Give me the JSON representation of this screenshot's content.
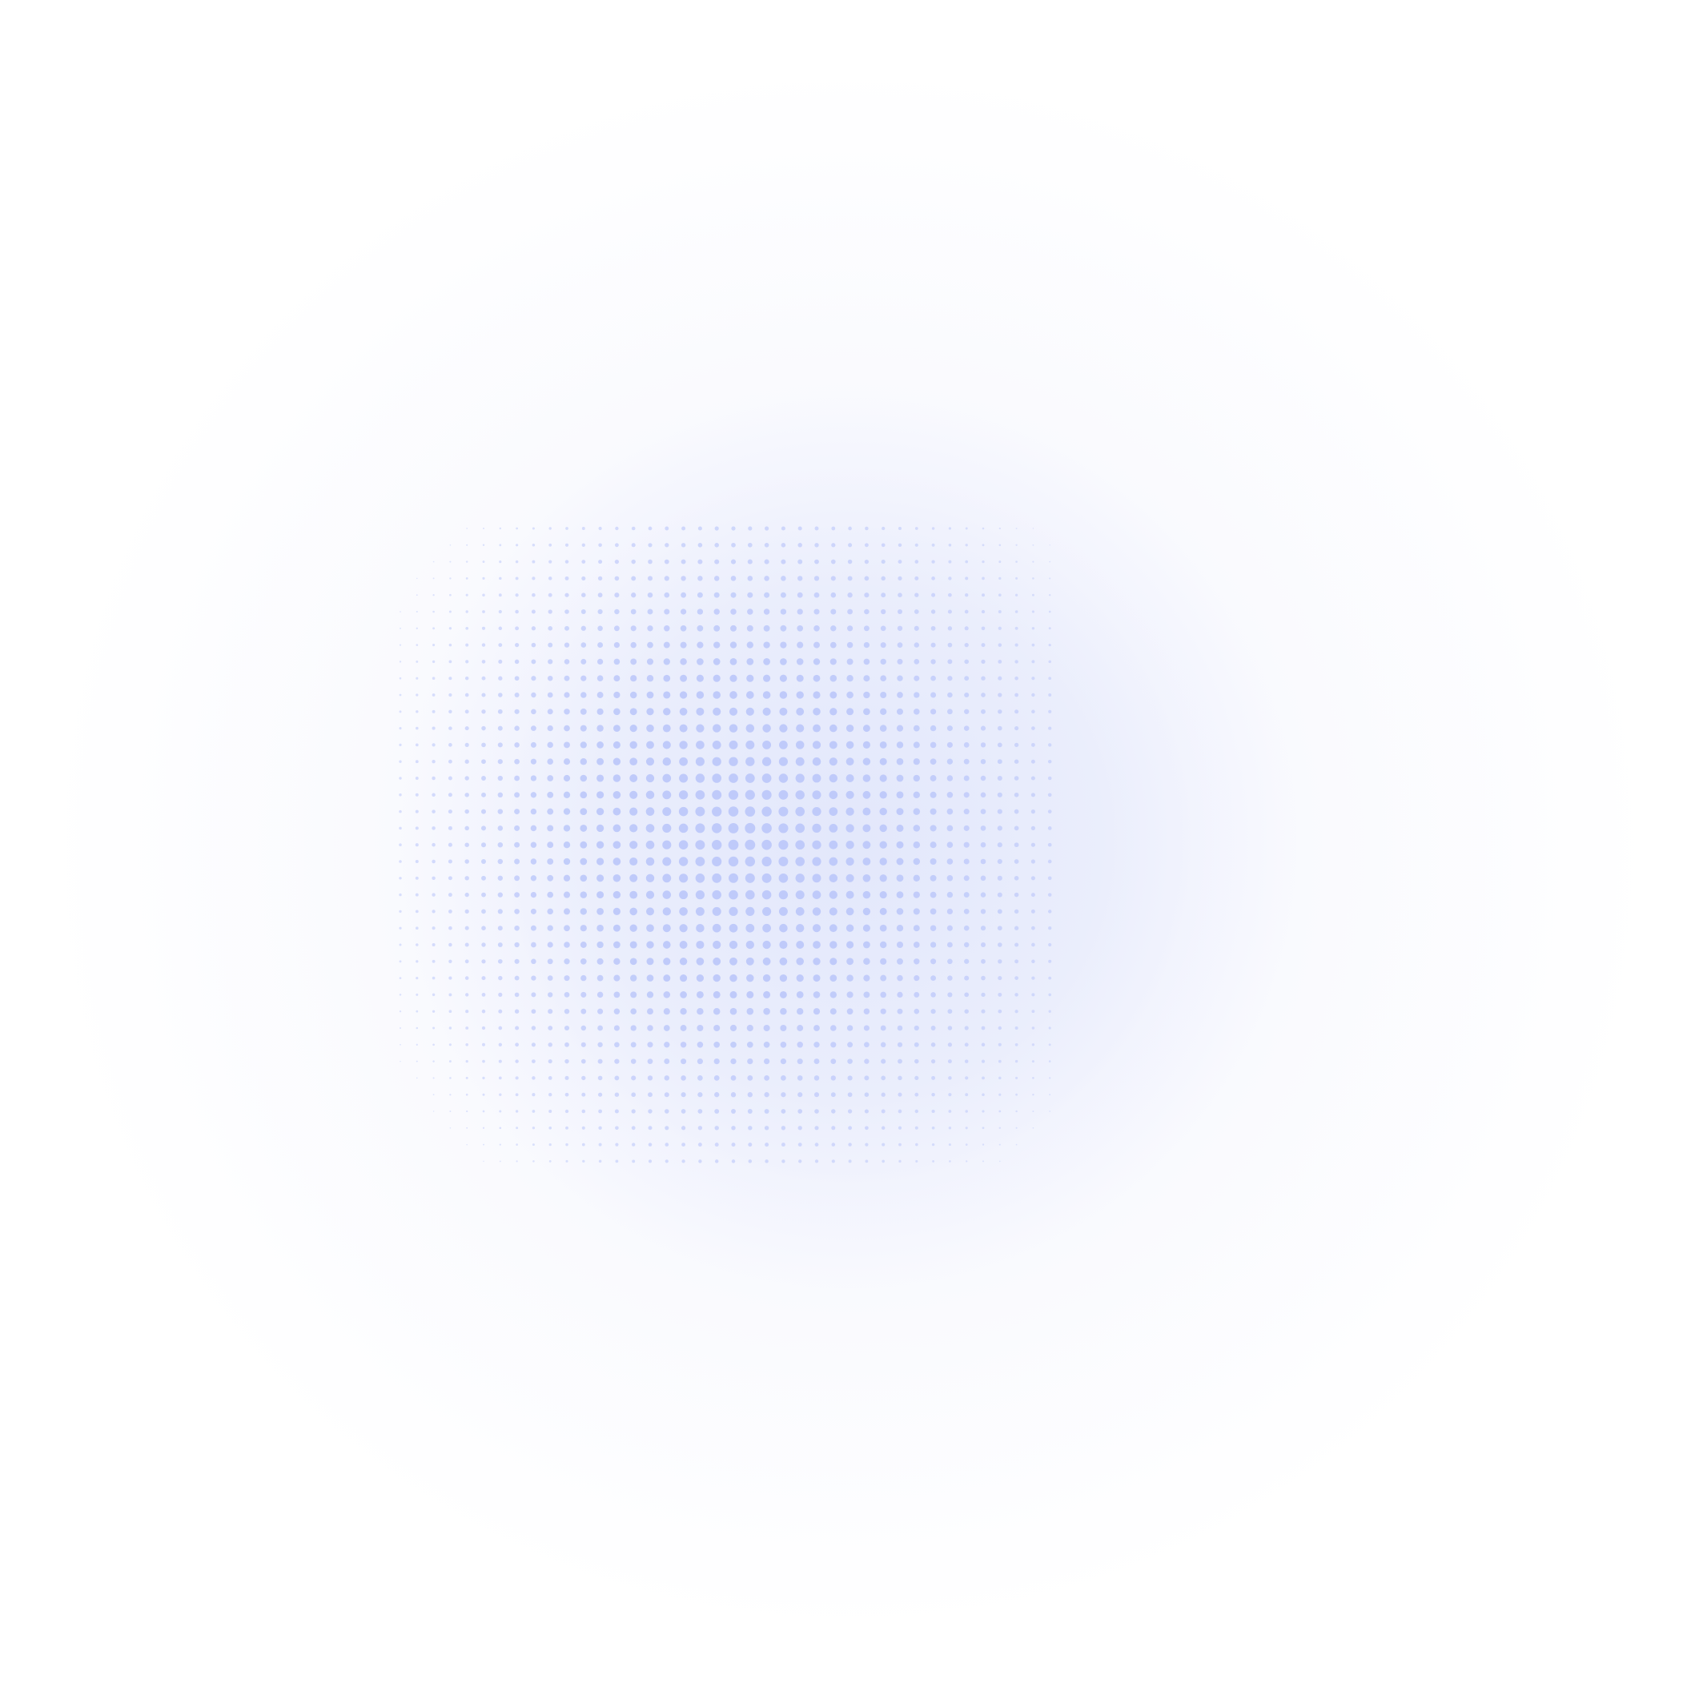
{
  "background": {
    "type": "halftone-glow",
    "glow_color": "#e6e9fb",
    "dot_color": "#bfcafa",
    "page_color": "#ffffff"
  }
}
